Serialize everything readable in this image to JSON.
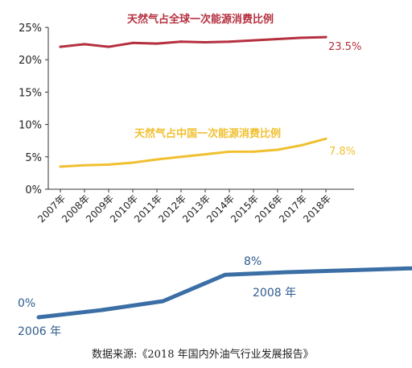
{
  "chart_data": [
    {
      "type": "line",
      "categories": [
        "2007年",
        "2008年",
        "2009年",
        "2010年",
        "2011年",
        "2012年",
        "2013年",
        "2014年",
        "2015年",
        "2016年",
        "2017年",
        "2018年"
      ],
      "ylim": [
        0,
        25
      ],
      "yticks": [
        0,
        5,
        10,
        15,
        20,
        25
      ],
      "ytick_labels": [
        "0%",
        "5%",
        "10%",
        "15%",
        "20%",
        "25%"
      ],
      "grid": false,
      "series": [
        {
          "name": "天然气占全球一次能源消费比例",
          "color": "#b5303f",
          "values": [
            22.0,
            22.4,
            22.0,
            22.6,
            22.5,
            22.8,
            22.7,
            22.8,
            23.0,
            23.2,
            23.4,
            23.5
          ],
          "end_label": "23.5%"
        },
        {
          "name": "天然气占中国一次能源消费比例",
          "color": "#f0c030",
          "values": [
            3.5,
            3.7,
            3.8,
            4.1,
            4.6,
            5.0,
            5.4,
            5.8,
            5.8,
            6.1,
            6.8,
            7.8
          ],
          "end_label": "7.8%"
        }
      ]
    },
    {
      "type": "line",
      "color": "#3a6ea5",
      "x": [
        2006,
        2007,
        2008,
        2009,
        2010,
        2011,
        2012
      ],
      "values": [
        0,
        1.1,
        2.5,
        6.6,
        7.0,
        7.3,
        7.6
      ],
      "labels": {
        "start_value": "0%",
        "start_year": "2006 年",
        "mid_value": "8%",
        "mid_year": "2008 年"
      }
    }
  ],
  "source": "数据来源:《2018 年国内外油气行业发展报告》"
}
